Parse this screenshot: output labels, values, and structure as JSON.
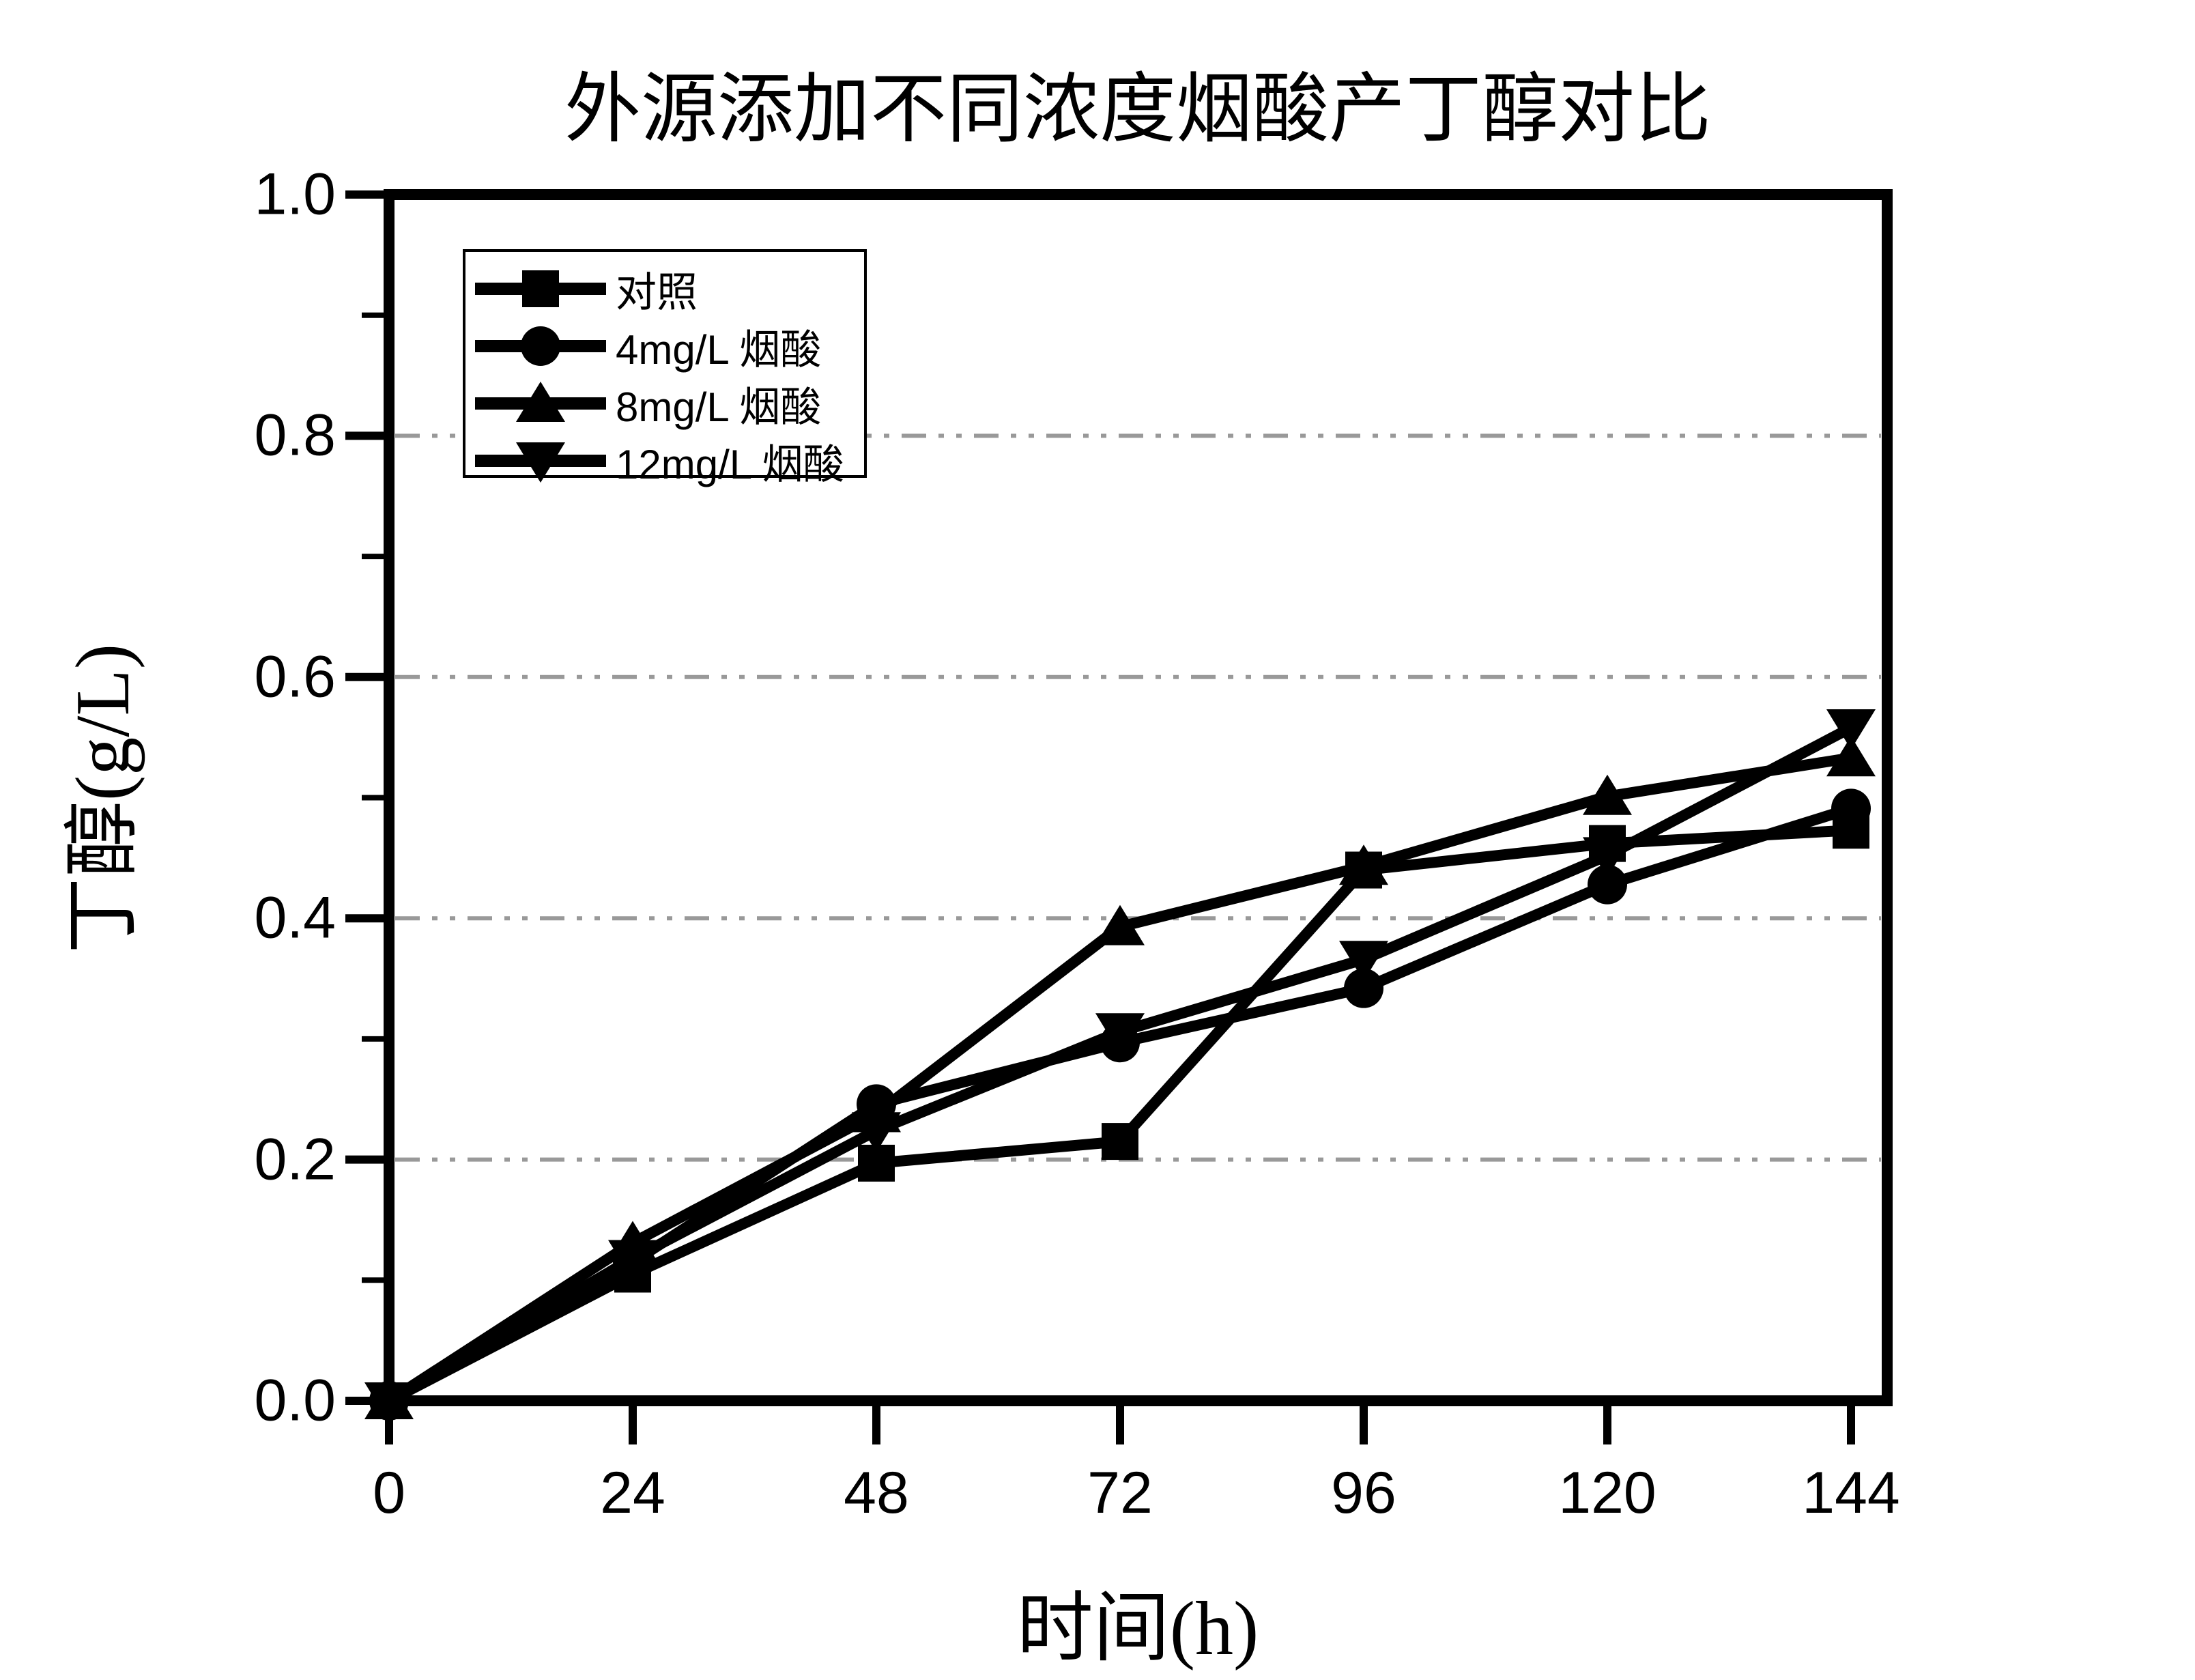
{
  "chart_data": {
    "type": "line",
    "title": "外源添加不同浓度烟酸产丁醇对比",
    "xlabel": "时间(h)",
    "ylabel": "丁醇(g/L)",
    "x": [
      0,
      24,
      48,
      72,
      96,
      120,
      144
    ],
    "xtick_labels": [
      "0",
      "24",
      "48",
      "72",
      "96",
      "120",
      "144"
    ],
    "yticks": [
      0.0,
      0.2,
      0.4,
      0.6,
      0.8,
      1.0
    ],
    "ytick_labels": [
      "0.0",
      "0.2",
      "0.4",
      "0.6",
      "0.8",
      "1.0"
    ],
    "yminor_ticks": [
      0.1,
      0.3,
      0.5,
      0.7,
      0.9
    ],
    "gridlines_y": [
      0.2,
      0.4,
      0.6,
      0.8
    ],
    "xlim": [
      0,
      147.6
    ],
    "ylim": [
      0.0,
      1.0
    ],
    "grid": "horizontal dash-dot gray",
    "legend_position": "upper-left",
    "series": [
      {
        "name": "对照",
        "marker": "square",
        "color": "#000000",
        "values": [
          0,
          0.105,
          0.197,
          0.215,
          0.44,
          0.462,
          0.473
        ]
      },
      {
        "name": "4mg/L 烟酸",
        "marker": "circle",
        "color": "#000000",
        "values": [
          0,
          0.115,
          0.246,
          0.297,
          0.342,
          0.428,
          0.491
        ]
      },
      {
        "name": "8mg/L 烟酸",
        "marker": "triangle-up",
        "color": "#000000",
        "values": [
          0,
          0.131,
          0.238,
          0.393,
          0.443,
          0.501,
          0.533
        ]
      },
      {
        "name": "12mg/L 烟酸",
        "marker": "triangle-down",
        "color": "#000000",
        "values": [
          0,
          0.118,
          0.224,
          0.306,
          0.366,
          0.452,
          0.558
        ]
      }
    ],
    "colors": {
      "line": "#000000",
      "grid": "#999999",
      "background": "#ffffff",
      "text": "#000000"
    }
  }
}
